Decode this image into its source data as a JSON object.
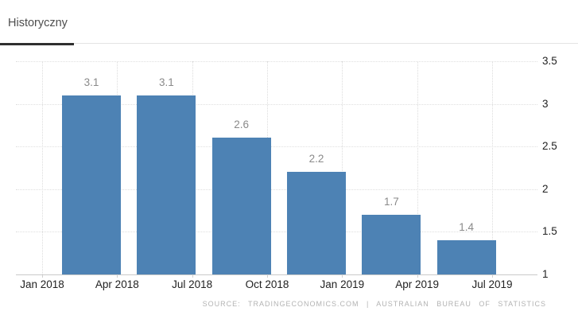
{
  "panel": {
    "tab_label": "Historyczny"
  },
  "chart_data": {
    "type": "bar",
    "title": "",
    "xlabel": "",
    "ylabel": "",
    "x_tick_labels": [
      "Jan 2018",
      "Apr 2018",
      "Jul 2018",
      "Oct 2018",
      "Jan 2019",
      "Apr 2019",
      "Jul 2019"
    ],
    "series": [
      {
        "name": "Historyczny",
        "values": [
          3.1,
          3.1,
          2.6,
          2.2,
          1.7,
          1.4
        ]
      }
    ],
    "value_labels": [
      "3.1",
      "3.1",
      "2.6",
      "2.2",
      "1.7",
      "1.4"
    ],
    "ylim": [
      1,
      3.5
    ],
    "y_ticks": [
      1,
      1.5,
      2,
      2.5,
      3,
      3.5
    ],
    "y_tick_labels": [
      "1",
      "1.5",
      "2",
      "2.5",
      "3",
      "3.5"
    ],
    "y_axis_position": "right",
    "grid": true,
    "bar_color": "#4d82b4",
    "source": "SOURCE: TRADINGECONOMICS.COM | AUSTRALIAN BUREAU OF STATISTICS"
  }
}
